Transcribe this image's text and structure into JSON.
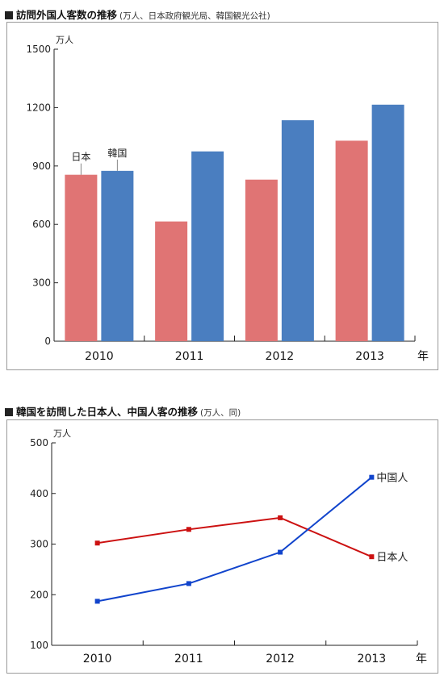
{
  "section1": {
    "title": "訪問外国人客数の推移",
    "note": "(万人、日本政府観光局、韓国観光公社)"
  },
  "section2": {
    "title": "韓国を訪問した日本人、中国人客の推移",
    "note": "(万人、同)"
  },
  "chart_data": [
    {
      "type": "bar",
      "title": "訪問外国人客数の推移",
      "ylabel": "万人",
      "xlabel": "年",
      "categories": [
        "2010",
        "2011",
        "2012",
        "2013"
      ],
      "ylim": [
        0,
        1500
      ],
      "yticks": [
        0,
        300,
        600,
        900,
        1200,
        1500
      ],
      "series": [
        {
          "name": "日本",
          "color": "#e07474",
          "values": [
            855,
            615,
            830,
            1030
          ]
        },
        {
          "name": "韓国",
          "color": "#4a7ec0",
          "values": [
            875,
            975,
            1135,
            1215
          ]
        }
      ],
      "legend": "inline-labels-above-first-bars",
      "grid": false
    },
    {
      "type": "line",
      "title": "韓国を訪問した日本人、中国人客の推移",
      "ylabel": "万人",
      "xlabel": "年",
      "categories": [
        "2010",
        "2011",
        "2012",
        "2013"
      ],
      "ylim": [
        100,
        500
      ],
      "yticks": [
        100,
        200,
        300,
        400,
        500
      ],
      "series": [
        {
          "name": "日本人",
          "color": "#cc1111",
          "values": [
            302,
            329,
            352,
            275
          ]
        },
        {
          "name": "中国人",
          "color": "#1144cc",
          "values": [
            187,
            222,
            284,
            432
          ]
        }
      ],
      "legend": "labels-at-line-ends",
      "grid": false
    }
  ]
}
